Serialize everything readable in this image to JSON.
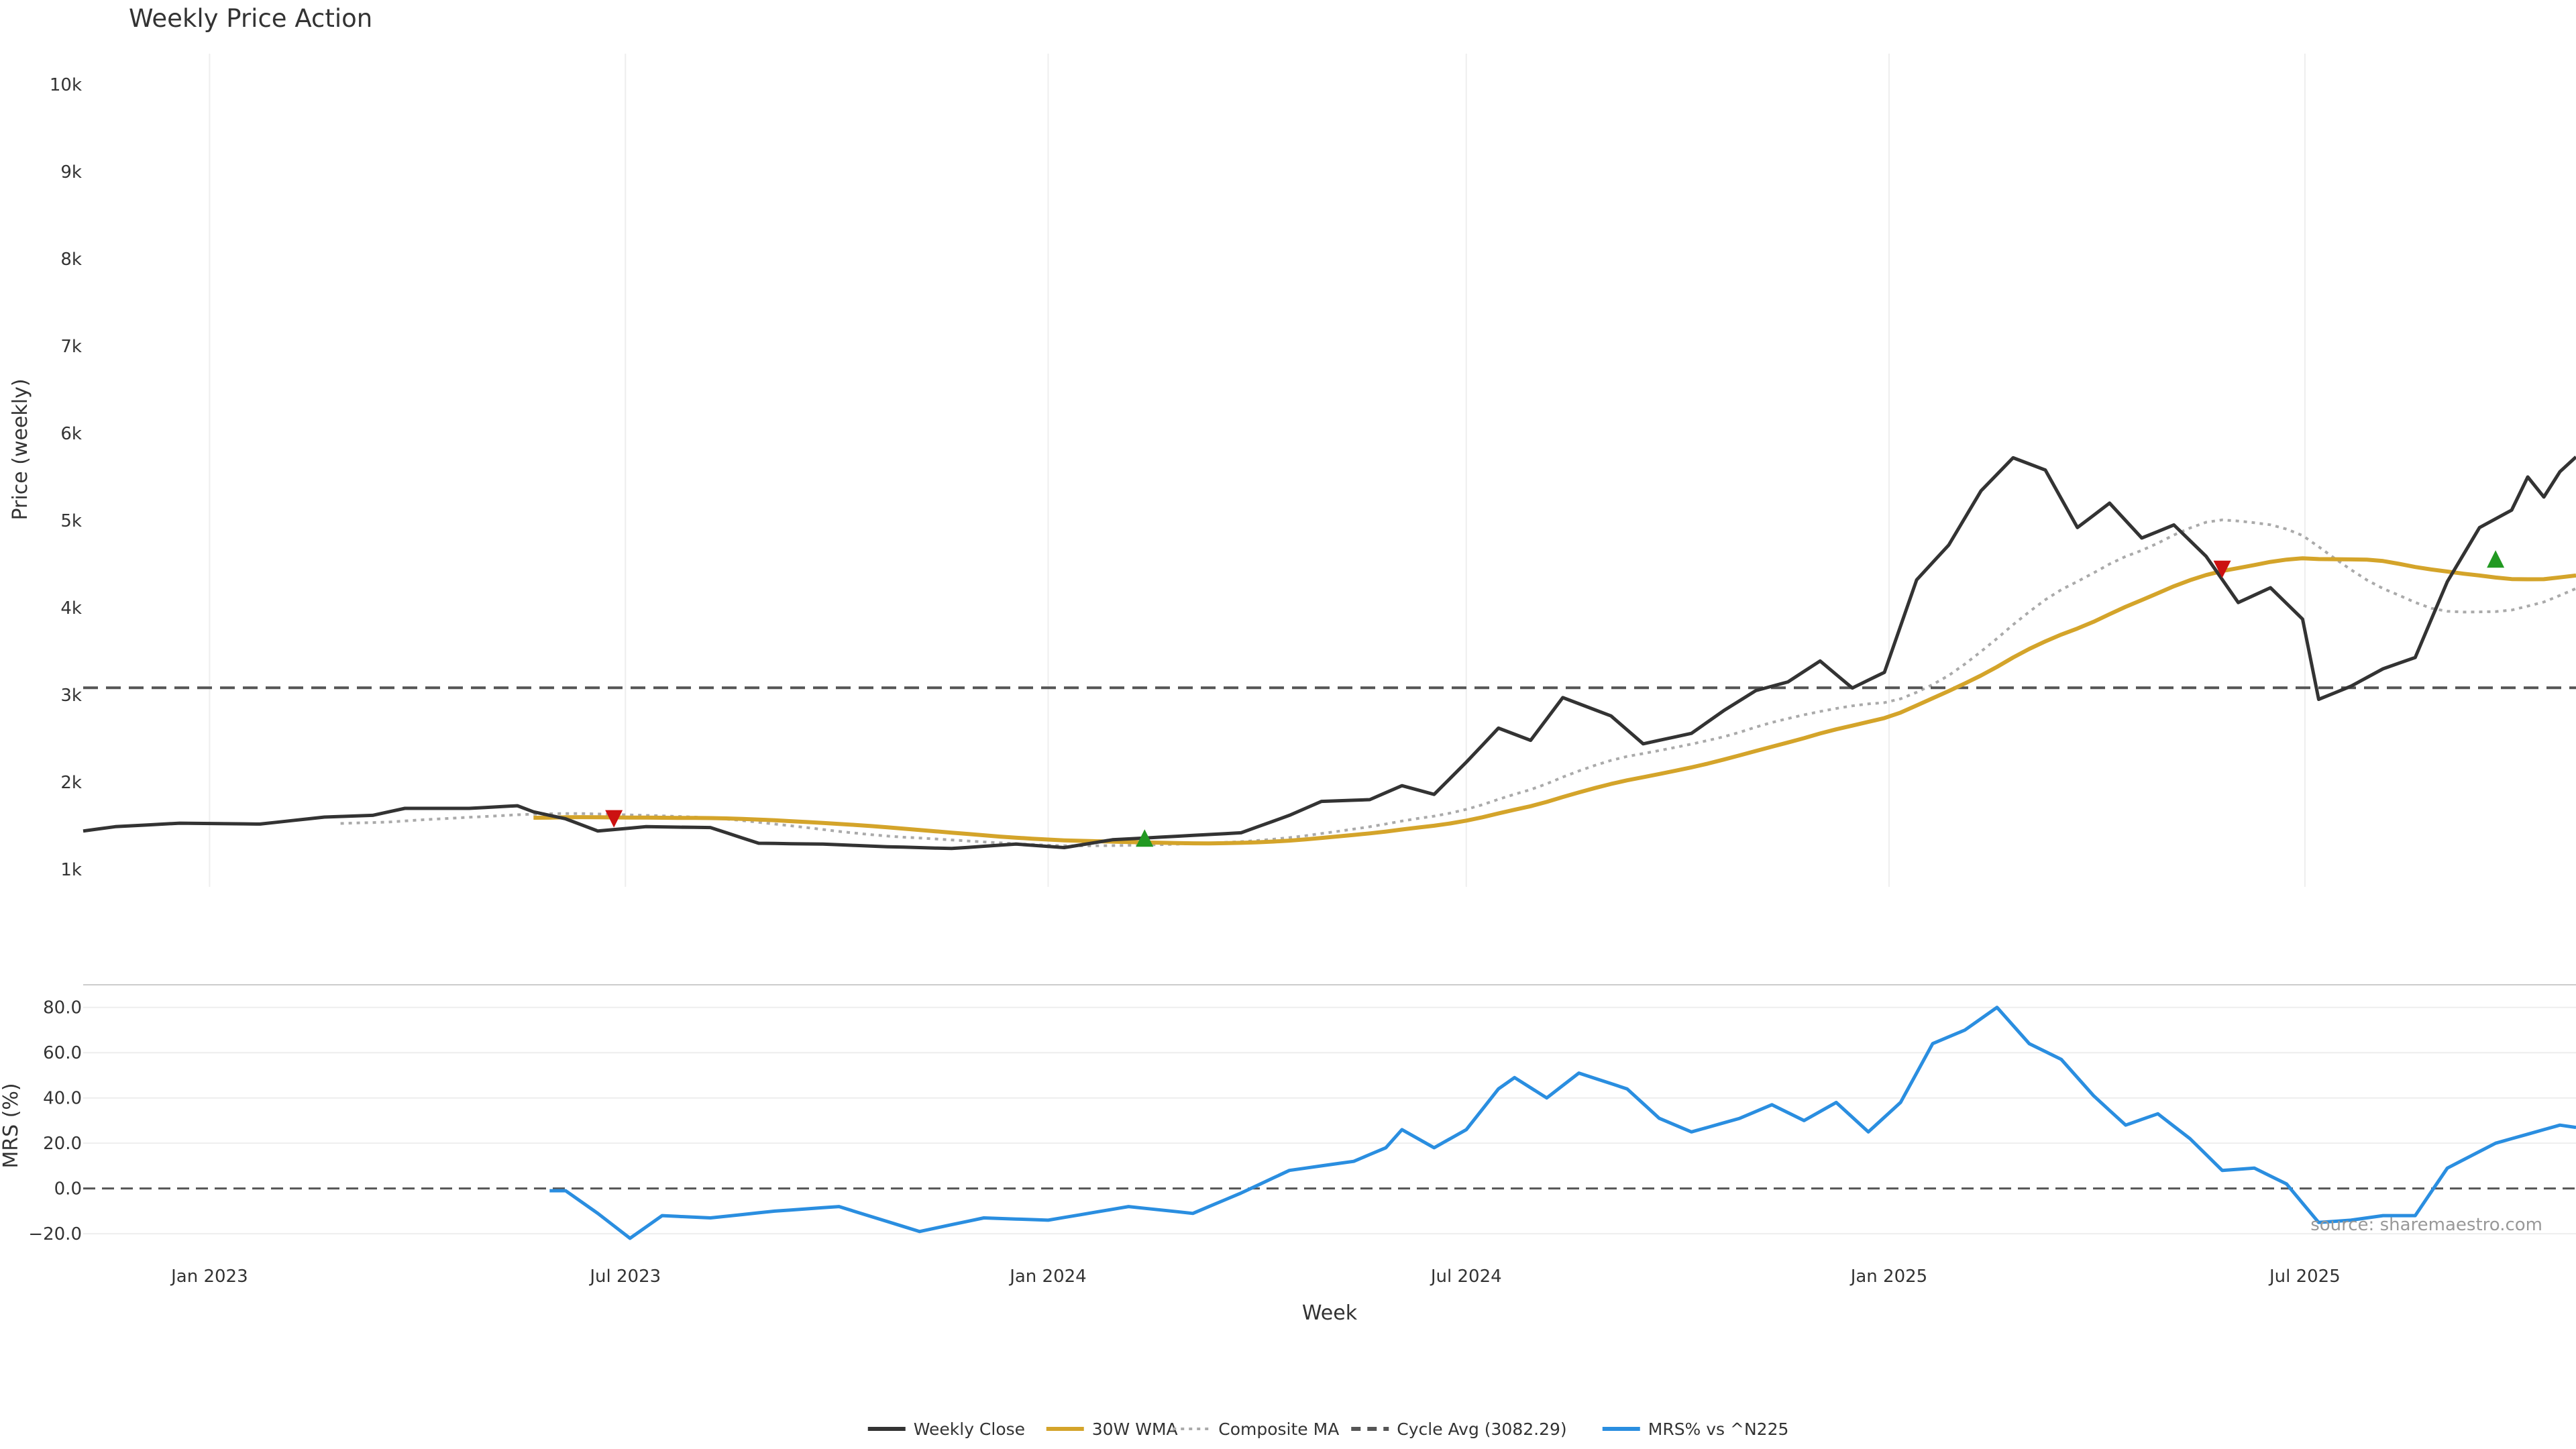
{
  "chart_data": [
    {
      "type": "line",
      "title": "Weekly Price Action",
      "ylabel": "Price (weekly)",
      "ylim": [
        800,
        10200
      ],
      "yticks": [
        {
          "v": 1000,
          "label": "1k"
        },
        {
          "v": 2000,
          "label": "2k"
        },
        {
          "v": 3000,
          "label": "3k"
        },
        {
          "v": 4000,
          "label": "4k"
        },
        {
          "v": 5000,
          "label": "5k"
        },
        {
          "v": 6000,
          "label": "6k"
        },
        {
          "v": 7000,
          "label": "7k"
        },
        {
          "v": 8000,
          "label": "8k"
        },
        {
          "v": 9000,
          "label": "9k"
        },
        {
          "v": 10000,
          "label": "10k"
        }
      ],
      "x_range": [
        "2022-11-07",
        "2025-10-27"
      ],
      "grid": "vertical",
      "series": [
        {
          "name": "Weekly Close",
          "color": "#333333",
          "style": "solid",
          "anchors": [
            [
              "2022-11-07",
              1440
            ],
            [
              "2022-11-21",
              1490
            ],
            [
              "2022-12-19",
              1530
            ],
            [
              "2023-01-23",
              1520
            ],
            [
              "2023-02-20",
              1600
            ],
            [
              "2023-03-13",
              1620
            ],
            [
              "2023-03-27",
              1700
            ],
            [
              "2023-04-24",
              1700
            ],
            [
              "2023-05-15",
              1730
            ],
            [
              "2023-05-22",
              1660
            ],
            [
              "2023-06-05",
              1580
            ],
            [
              "2023-06-19",
              1440
            ],
            [
              "2023-07-10",
              1490
            ],
            [
              "2023-08-07",
              1480
            ],
            [
              "2023-08-28",
              1300
            ],
            [
              "2023-09-25",
              1290
            ],
            [
              "2023-10-23",
              1260
            ],
            [
              "2023-11-20",
              1240
            ],
            [
              "2023-12-18",
              1290
            ],
            [
              "2024-01-08",
              1250
            ],
            [
              "2024-01-29",
              1340
            ],
            [
              "2024-02-26",
              1380
            ],
            [
              "2024-03-25",
              1420
            ],
            [
              "2024-04-15",
              1620
            ],
            [
              "2024-04-29",
              1780
            ],
            [
              "2024-05-20",
              1800
            ],
            [
              "2024-06-03",
              1960
            ],
            [
              "2024-06-17",
              1860
            ],
            [
              "2024-07-01",
              2230
            ],
            [
              "2024-07-15",
              2620
            ],
            [
              "2024-07-29",
              2480
            ],
            [
              "2024-08-12",
              2970
            ],
            [
              "2024-09-02",
              2760
            ],
            [
              "2024-09-16",
              2440
            ],
            [
              "2024-10-07",
              2560
            ],
            [
              "2024-10-21",
              2820
            ],
            [
              "2024-11-04",
              3050
            ],
            [
              "2024-11-18",
              3150
            ],
            [
              "2024-12-02",
              3390
            ],
            [
              "2024-12-16",
              3080
            ],
            [
              "2024-12-30",
              3260
            ],
            [
              "2025-01-13",
              4320
            ],
            [
              "2025-01-27",
              4720
            ],
            [
              "2025-02-10",
              5340
            ],
            [
              "2025-02-24",
              5720
            ],
            [
              "2025-03-10",
              5580
            ],
            [
              "2025-03-24",
              4920
            ],
            [
              "2025-04-07",
              5200
            ],
            [
              "2025-04-21",
              4800
            ],
            [
              "2025-05-05",
              4950
            ],
            [
              "2025-05-19",
              4590
            ],
            [
              "2025-06-02",
              4060
            ],
            [
              "2025-06-16",
              4230
            ],
            [
              "2025-06-30",
              3870
            ],
            [
              "2025-07-07",
              2950
            ],
            [
              "2025-07-21",
              3100
            ],
            [
              "2025-08-04",
              3300
            ],
            [
              "2025-08-18",
              3430
            ],
            [
              "2025-09-01",
              4300
            ],
            [
              "2025-09-15",
              4920
            ],
            [
              "2025-09-29",
              5120
            ],
            [
              "2025-10-06",
              5500
            ],
            [
              "2025-10-13",
              5270
            ],
            [
              "2025-10-20",
              5560
            ],
            [
              "2025-10-27",
              5730
            ]
          ]
        },
        {
          "name": "30W WMA",
          "color": "#d4a42a",
          "style": "solid"
        },
        {
          "name": "Composite MA",
          "color": "#aaaaaa",
          "style": "dotted"
        },
        {
          "name": "Cycle Avg (3082.29)",
          "color": "#555555",
          "style": "dashed",
          "value": 3082.29
        }
      ],
      "markers": [
        {
          "x": "2023-06-26",
          "y": 1580,
          "dir": "down",
          "color": "#cc1111"
        },
        {
          "x": "2024-02-12",
          "y": 1360,
          "dir": "up",
          "color": "#229922"
        },
        {
          "x": "2025-05-26",
          "y": 4440,
          "dir": "down",
          "color": "#cc1111"
        },
        {
          "x": "2025-09-22",
          "y": 4560,
          "dir": "up",
          "color": "#229922"
        }
      ]
    },
    {
      "type": "line",
      "ylabel": "MRS (%)",
      "ylim": [
        -25,
        90
      ],
      "yticks": [
        {
          "v": -20,
          "label": "−20.0"
        },
        {
          "v": 0,
          "label": "0.0"
        },
        {
          "v": 20,
          "label": "20.0"
        },
        {
          "v": 40,
          "label": "40.0"
        },
        {
          "v": 60,
          "label": "60.0"
        },
        {
          "v": 80,
          "label": "80.0"
        }
      ],
      "xlabel": "Week",
      "xticks": [
        {
          "x": "2023-01-01",
          "label": "Jan 2023"
        },
        {
          "x": "2023-07-01",
          "label": "Jul 2023"
        },
        {
          "x": "2024-01-01",
          "label": "Jan 2024"
        },
        {
          "x": "2024-07-01",
          "label": "Jul 2024"
        },
        {
          "x": "2025-01-01",
          "label": "Jan 2025"
        },
        {
          "x": "2025-07-01",
          "label": "Jul 2025"
        }
      ],
      "series": [
        {
          "name": "MRS% vs ^N225",
          "color": "#2a8ee0",
          "style": "solid",
          "anchors": [
            [
              "2023-05-29",
              -1
            ],
            [
              "2023-06-05",
              -1
            ],
            [
              "2023-06-19",
              -11
            ],
            [
              "2023-07-03",
              -22
            ],
            [
              "2023-07-17",
              -12
            ],
            [
              "2023-08-07",
              -13
            ],
            [
              "2023-09-04",
              -10
            ],
            [
              "2023-10-02",
              -8
            ],
            [
              "2023-11-06",
              -19
            ],
            [
              "2023-12-04",
              -13
            ],
            [
              "2024-01-01",
              -14
            ],
            [
              "2024-02-05",
              -8
            ],
            [
              "2024-03-04",
              -11
            ],
            [
              "2024-03-25",
              -2
            ],
            [
              "2024-04-15",
              8
            ],
            [
              "2024-05-13",
              12
            ],
            [
              "2024-05-27",
              18
            ],
            [
              "2024-06-03",
              26
            ],
            [
              "2024-06-17",
              18
            ],
            [
              "2024-07-01",
              26
            ],
            [
              "2024-07-15",
              44
            ],
            [
              "2024-07-22",
              49
            ],
            [
              "2024-08-05",
              40
            ],
            [
              "2024-08-19",
              51
            ],
            [
              "2024-09-09",
              44
            ],
            [
              "2024-09-23",
              31
            ],
            [
              "2024-10-07",
              25
            ],
            [
              "2024-10-28",
              31
            ],
            [
              "2024-11-11",
              37
            ],
            [
              "2024-11-25",
              30
            ],
            [
              "2024-12-09",
              38
            ],
            [
              "2024-12-23",
              25
            ],
            [
              "2025-01-06",
              38
            ],
            [
              "2025-01-20",
              64
            ],
            [
              "2025-02-03",
              70
            ],
            [
              "2025-02-17",
              80
            ],
            [
              "2025-03-03",
              64
            ],
            [
              "2025-03-17",
              57
            ],
            [
              "2025-03-31",
              41
            ],
            [
              "2025-04-14",
              28
            ],
            [
              "2025-04-28",
              33
            ],
            [
              "2025-05-12",
              22
            ],
            [
              "2025-05-26",
              8
            ],
            [
              "2025-06-09",
              9
            ],
            [
              "2025-06-23",
              2
            ],
            [
              "2025-07-07",
              -15
            ],
            [
              "2025-07-21",
              -14
            ],
            [
              "2025-08-04",
              -12
            ],
            [
              "2025-08-18",
              -12
            ],
            [
              "2025-09-01",
              9
            ],
            [
              "2025-09-22",
              20
            ],
            [
              "2025-10-06",
              24
            ],
            [
              "2025-10-20",
              28
            ],
            [
              "2025-10-27",
              27
            ]
          ]
        }
      ]
    }
  ],
  "source_note": "source: sharemaestro.com",
  "legend": {
    "placement": "bottom-center",
    "items": [
      {
        "label": "Weekly Close",
        "color": "#333333",
        "style": "solid"
      },
      {
        "label": "30W WMA",
        "color": "#d4a42a",
        "style": "solid"
      },
      {
        "label": "Composite MA",
        "color": "#aaaaaa",
        "style": "dotted"
      },
      {
        "label": "Cycle Avg (3082.29)",
        "color": "#555555",
        "style": "dashed"
      },
      {
        "label": "MRS% vs ^N225",
        "color": "#2a8ee0",
        "style": "solid"
      }
    ]
  }
}
